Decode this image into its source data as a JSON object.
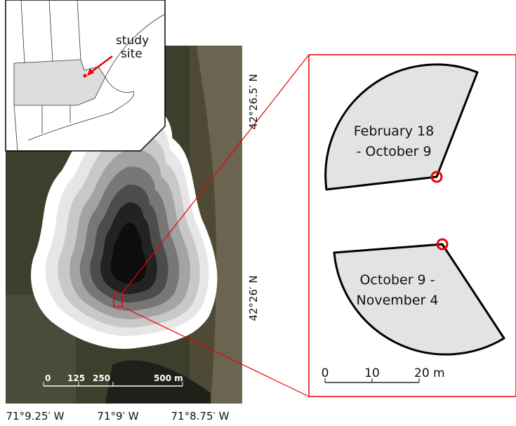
{
  "inset": {
    "label": [
      "study",
      "site"
    ]
  },
  "map": {
    "lat_labels": [
      "42°26.5′ N",
      "42°26′ N"
    ],
    "lon_labels": [
      "71°9.25′ W",
      "71°9′ W",
      "71°8.75′ W"
    ],
    "scale_labels": [
      "0",
      "125",
      "250",
      "500 m"
    ]
  },
  "detail": {
    "sectors": [
      {
        "label": [
          "February 18",
          "- October 9"
        ]
      },
      {
        "label": [
          "October 9 -",
          "November 4"
        ]
      }
    ],
    "scale_labels": [
      "0",
      "10",
      "20 m"
    ]
  }
}
